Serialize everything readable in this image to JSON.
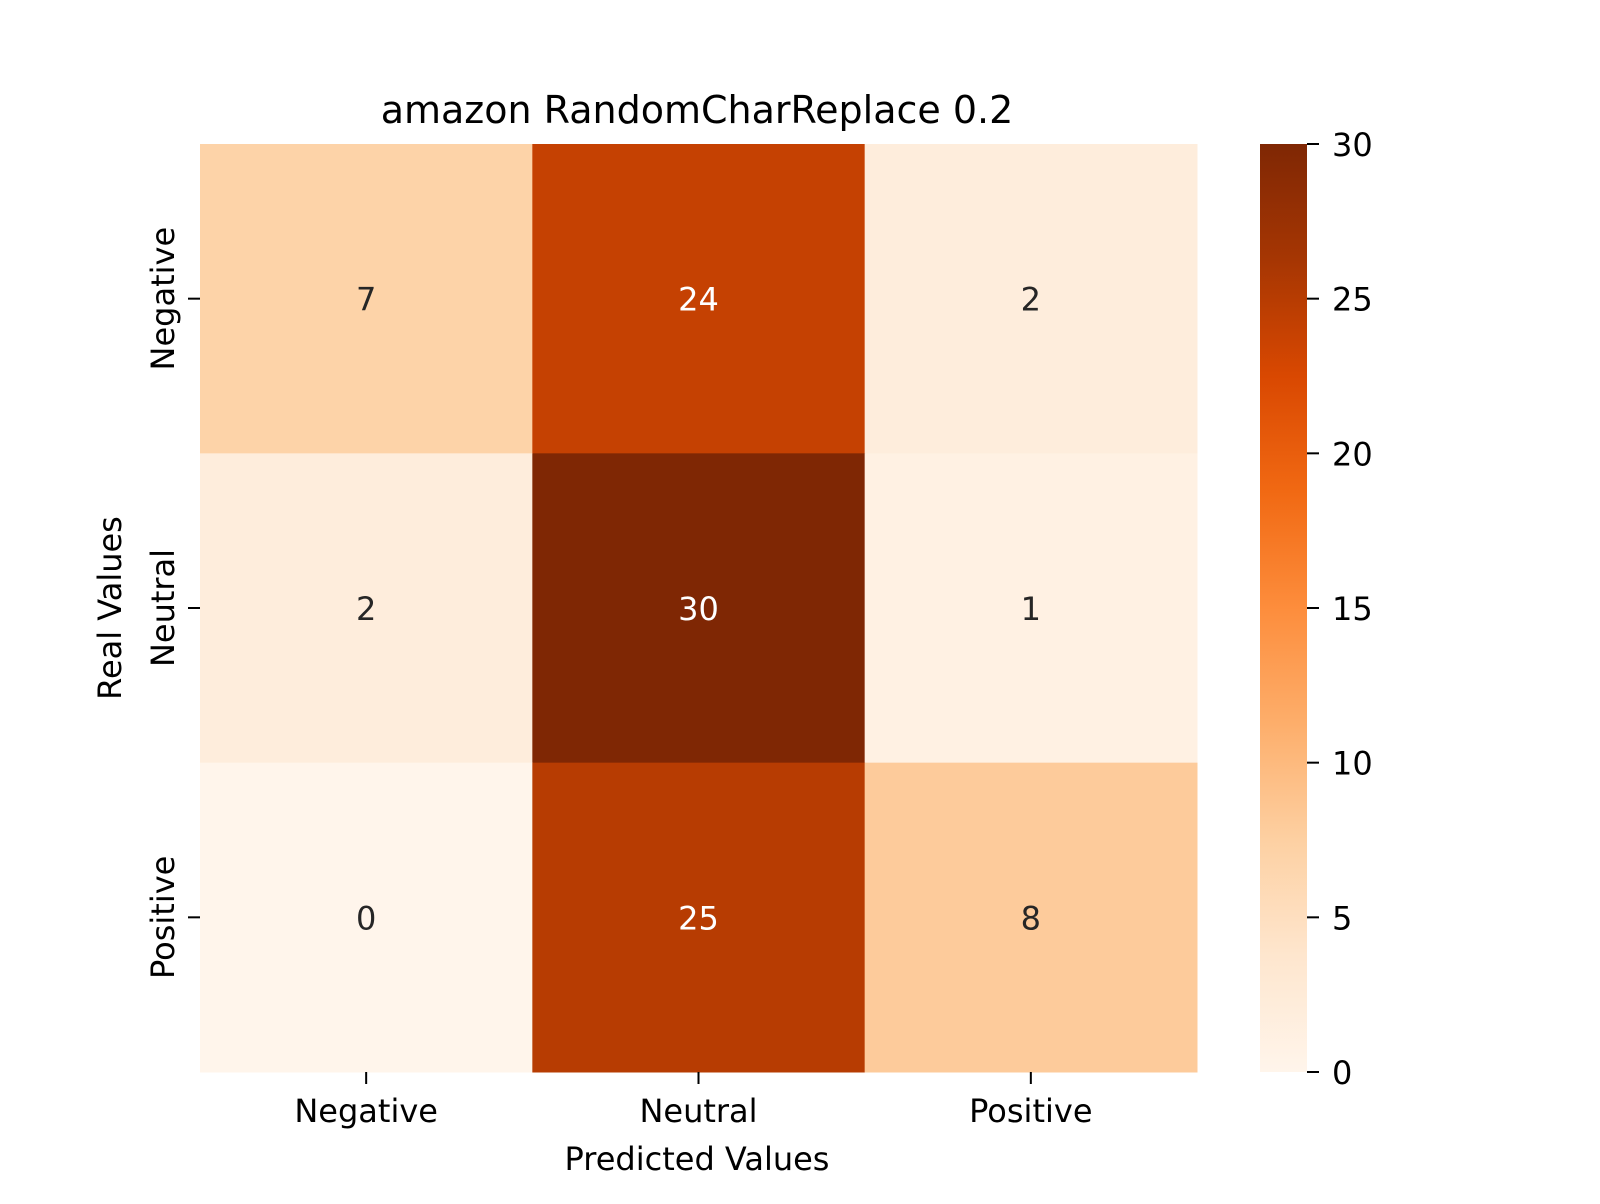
{
  "chart_data": {
    "type": "heatmap",
    "title": "amazon RandomCharReplace 0.2",
    "xlabel": "Predicted Values",
    "ylabel": "Real Values",
    "x_categories": [
      "Negative",
      "Neutral",
      "Positive"
    ],
    "y_categories": [
      "Negative",
      "Neutral",
      "Positive"
    ],
    "values": [
      [
        7,
        24,
        2
      ],
      [
        2,
        30,
        1
      ],
      [
        0,
        25,
        8
      ]
    ],
    "colorbar": {
      "range": [
        0,
        30
      ],
      "ticks": [
        "0",
        "5",
        "10",
        "15",
        "20",
        "25",
        "30"
      ],
      "colormap": "Oranges",
      "colors": [
        "#fff5eb",
        "#fee6ce",
        "#fdd0a2",
        "#fdae6b",
        "#fd8d3c",
        "#f16913",
        "#d94801",
        "#a63603",
        "#7f2704"
      ]
    },
    "grid": false
  }
}
